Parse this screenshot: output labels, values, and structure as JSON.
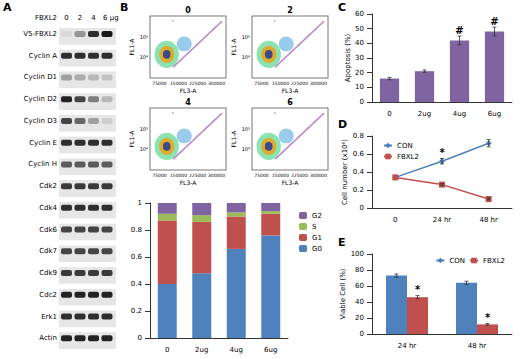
{
  "panel_labels": [
    "A",
    "B",
    "C",
    "D",
    "E"
  ],
  "western_blot": {
    "treatment": "FBXL2",
    "doses": [
      "0",
      "2",
      "4",
      "6 µg"
    ],
    "rows": [
      {
        "label": "V5-FBXL2",
        "intensity": [
          0.05,
          0.35,
          0.8,
          0.9
        ]
      },
      {
        "label": "Cyclin A",
        "intensity": [
          0.8,
          0.8,
          0.8,
          0.8
        ]
      },
      {
        "label": "Cyclin D1",
        "intensity": [
          0.3,
          0.25,
          0.2,
          0.15
        ]
      },
      {
        "label": "Cyclin D2",
        "intensity": [
          0.85,
          0.7,
          0.45,
          0.2
        ]
      },
      {
        "label": "Cyclin D3",
        "intensity": [
          0.7,
          0.55,
          0.3,
          0.1
        ]
      },
      {
        "label": "Cyclin E",
        "intensity": [
          0.8,
          0.8,
          0.8,
          0.8
        ]
      },
      {
        "label": "Cyclin H",
        "intensity": [
          0.6,
          0.6,
          0.6,
          0.6
        ]
      },
      {
        "label": "Cdk2",
        "intensity": [
          0.75,
          0.75,
          0.75,
          0.75
        ]
      },
      {
        "label": "Cdk4",
        "intensity": [
          0.8,
          0.8,
          0.8,
          0.8
        ]
      },
      {
        "label": "Cdk6",
        "intensity": [
          0.7,
          0.7,
          0.7,
          0.7
        ]
      },
      {
        "label": "Cdk7",
        "intensity": [
          0.7,
          0.7,
          0.7,
          0.7
        ]
      },
      {
        "label": "Cdk9",
        "intensity": [
          0.75,
          0.75,
          0.75,
          0.75
        ]
      },
      {
        "label": "Cdc2",
        "intensity": [
          0.85,
          0.85,
          0.85,
          0.85
        ]
      },
      {
        "label": "Erk1",
        "intensity": [
          0.8,
          0.8,
          0.8,
          0.8
        ]
      },
      {
        "label": "Actin",
        "intensity": [
          0.85,
          0.85,
          0.85,
          0.85
        ]
      }
    ]
  },
  "flow_cytometry": {
    "plots": [
      "0",
      "2",
      "4",
      "6"
    ],
    "x_label": "FL3-A",
    "y_label": "FL1-A",
    "xticks": [
      "75000",
      "150000",
      "225000",
      "300000"
    ],
    "yticks": [
      "10⁴",
      "10⁵"
    ]
  },
  "chart_data": [
    {
      "type": "bar",
      "stacked": true,
      "categories": [
        "0",
        "2ug",
        "4ug",
        "6ug"
      ],
      "series": [
        {
          "name": "G0",
          "color": "#4f81bd",
          "values": [
            0.4,
            0.48,
            0.66,
            0.76
          ]
        },
        {
          "name": "G1",
          "color": "#c0504d",
          "values": [
            0.47,
            0.38,
            0.24,
            0.16
          ]
        },
        {
          "name": "S",
          "color": "#9bbb59",
          "values": [
            0.05,
            0.05,
            0.03,
            0.02
          ]
        },
        {
          "name": "G2",
          "color": "#8064a2",
          "values": [
            0.08,
            0.09,
            0.07,
            0.06
          ]
        }
      ],
      "ylim": [
        0,
        1
      ],
      "yticks": [
        0,
        0.2,
        0.4,
        0.6,
        0.8,
        1
      ],
      "legend": "right",
      "grid": false
    },
    {
      "type": "bar",
      "ylabel": "Apoptosis (%)",
      "categories": [
        "0",
        "2ug",
        "4ug",
        "6ug"
      ],
      "values": [
        16,
        21,
        42,
        48
      ],
      "errors": [
        0.8,
        0.8,
        3,
        3
      ],
      "color": "#8064a2",
      "ylim": [
        0,
        60
      ],
      "yticks": [
        0,
        10,
        20,
        30,
        40,
        50,
        60
      ],
      "annotations": [
        {
          "category": "4ug",
          "text": "#"
        },
        {
          "category": "6ug",
          "text": "#"
        }
      ],
      "grid": false
    },
    {
      "type": "line",
      "ylabel": "Cell number (x10⁶)",
      "categories": [
        "0",
        "24 hr",
        "48 hr"
      ],
      "series": [
        {
          "name": "CON",
          "color": "#4f81bd",
          "marker": "diamond",
          "values": [
            0.34,
            0.52,
            0.72
          ],
          "errors": [
            0,
            0.03,
            0.04
          ]
        },
        {
          "name": "FBXL2",
          "color": "#c0504d",
          "marker": "square",
          "values": [
            0.34,
            0.26,
            0.1
          ],
          "errors": [
            0,
            0.01,
            0.01
          ]
        }
      ],
      "ylim": [
        0,
        0.8
      ],
      "yticks": [
        0,
        0.2,
        0.4,
        0.6,
        0.8
      ],
      "legend": "top-left",
      "annotations": [
        {
          "category": "24 hr",
          "series": "CON",
          "text": "*"
        }
      ],
      "grid": false
    },
    {
      "type": "bar",
      "ylabel": "Viable Cell (%)",
      "categories": [
        "24 hr",
        "48 hr"
      ],
      "series": [
        {
          "name": "CON",
          "color": "#4f81bd",
          "values": [
            73,
            64
          ],
          "errors": [
            2,
            2
          ]
        },
        {
          "name": "FBXL2",
          "color": "#c0504d",
          "values": [
            46,
            12
          ],
          "errors": [
            2,
            1
          ]
        }
      ],
      "ylim": [
        0,
        100
      ],
      "yticks": [
        0,
        20,
        40,
        60,
        80,
        100
      ],
      "legend": "top-right",
      "annotations": [
        {
          "category": "24 hr",
          "series": "FBXL2",
          "text": "*"
        },
        {
          "category": "48 hr",
          "series": "FBXL2",
          "text": "*"
        }
      ],
      "grid": false
    }
  ]
}
